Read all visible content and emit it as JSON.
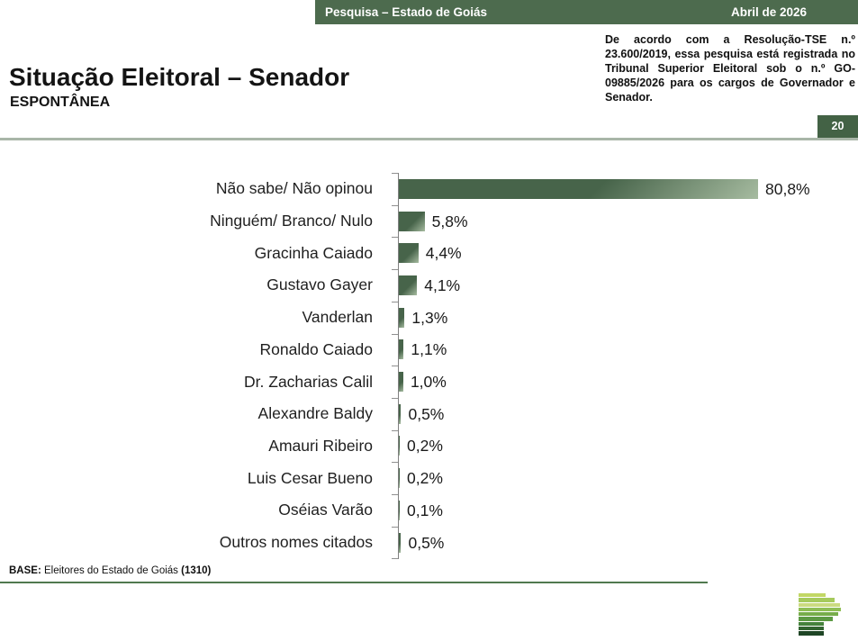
{
  "header": {
    "title": "Pesquisa – Estado de Goiás",
    "date": "Abril de 2026"
  },
  "slide": {
    "title": "Situação Eleitoral – Senador",
    "subtitle": "ESPONTÂNEA",
    "page_number": "20",
    "disclaimer": "De acordo com a Resolução-TSE n.º 23.600/2019, essa pesquisa está registrada no Tribunal Superior Eleitoral sob o n.º GO-09885/2026 para os cargos de Governador e Senador."
  },
  "chart_data": {
    "type": "bar",
    "orientation": "horizontal",
    "title": "Situação Eleitoral – Senador (Espontânea)",
    "categories": [
      "Não sabe/ Não opinou",
      "Ninguém/ Branco/ Nulo",
      "Gracinha Caiado",
      "Gustavo Gayer",
      "Vanderlan",
      "Ronaldo Caiado",
      "Dr. Zacharias Calil",
      "Alexandre Baldy",
      "Amauri Ribeiro",
      "Luis Cesar Bueno",
      "Oséias Varão",
      "Outros nomes citados"
    ],
    "values": [
      80.8,
      5.8,
      4.4,
      4.1,
      1.3,
      1.1,
      1.0,
      0.5,
      0.2,
      0.2,
      0.1,
      0.5
    ],
    "value_labels": [
      "80,8%",
      "5,8%",
      "4,4%",
      "4,1%",
      "1,3%",
      "1,1%",
      "1,0%",
      "0,5%",
      "0,2%",
      "0,2%",
      "0,1%",
      "0,5%"
    ],
    "xlim": [
      0,
      81.7
    ],
    "grid": false,
    "legend": false,
    "bar_color_dark": "#47644a",
    "bar_color_light": "#a6bba0"
  },
  "footer": {
    "base_label": "BASE:",
    "base_text": " Eleitores do Estado de Goiás ",
    "base_count": "(1310)"
  },
  "colors": {
    "header_bar": "#4d6b4e",
    "page_box": "#436245",
    "divider": "#a9b6a8",
    "footer_line": "#50794f",
    "axis": "#808080"
  },
  "logo": {
    "stripes": [
      {
        "w": 30,
        "c": "#c2d765"
      },
      {
        "w": 40,
        "c": "#a6ca5c"
      },
      {
        "w": 46,
        "c": "#cbdb80"
      },
      {
        "w": 47,
        "c": "#8fbe55"
      },
      {
        "w": 44,
        "c": "#77ad4b"
      },
      {
        "w": 38,
        "c": "#5d9a44"
      },
      {
        "w": 28,
        "c": "#45823c"
      },
      {
        "w": 28,
        "c": "#326430"
      },
      {
        "w": 28,
        "c": "#1e4525"
      }
    ]
  }
}
